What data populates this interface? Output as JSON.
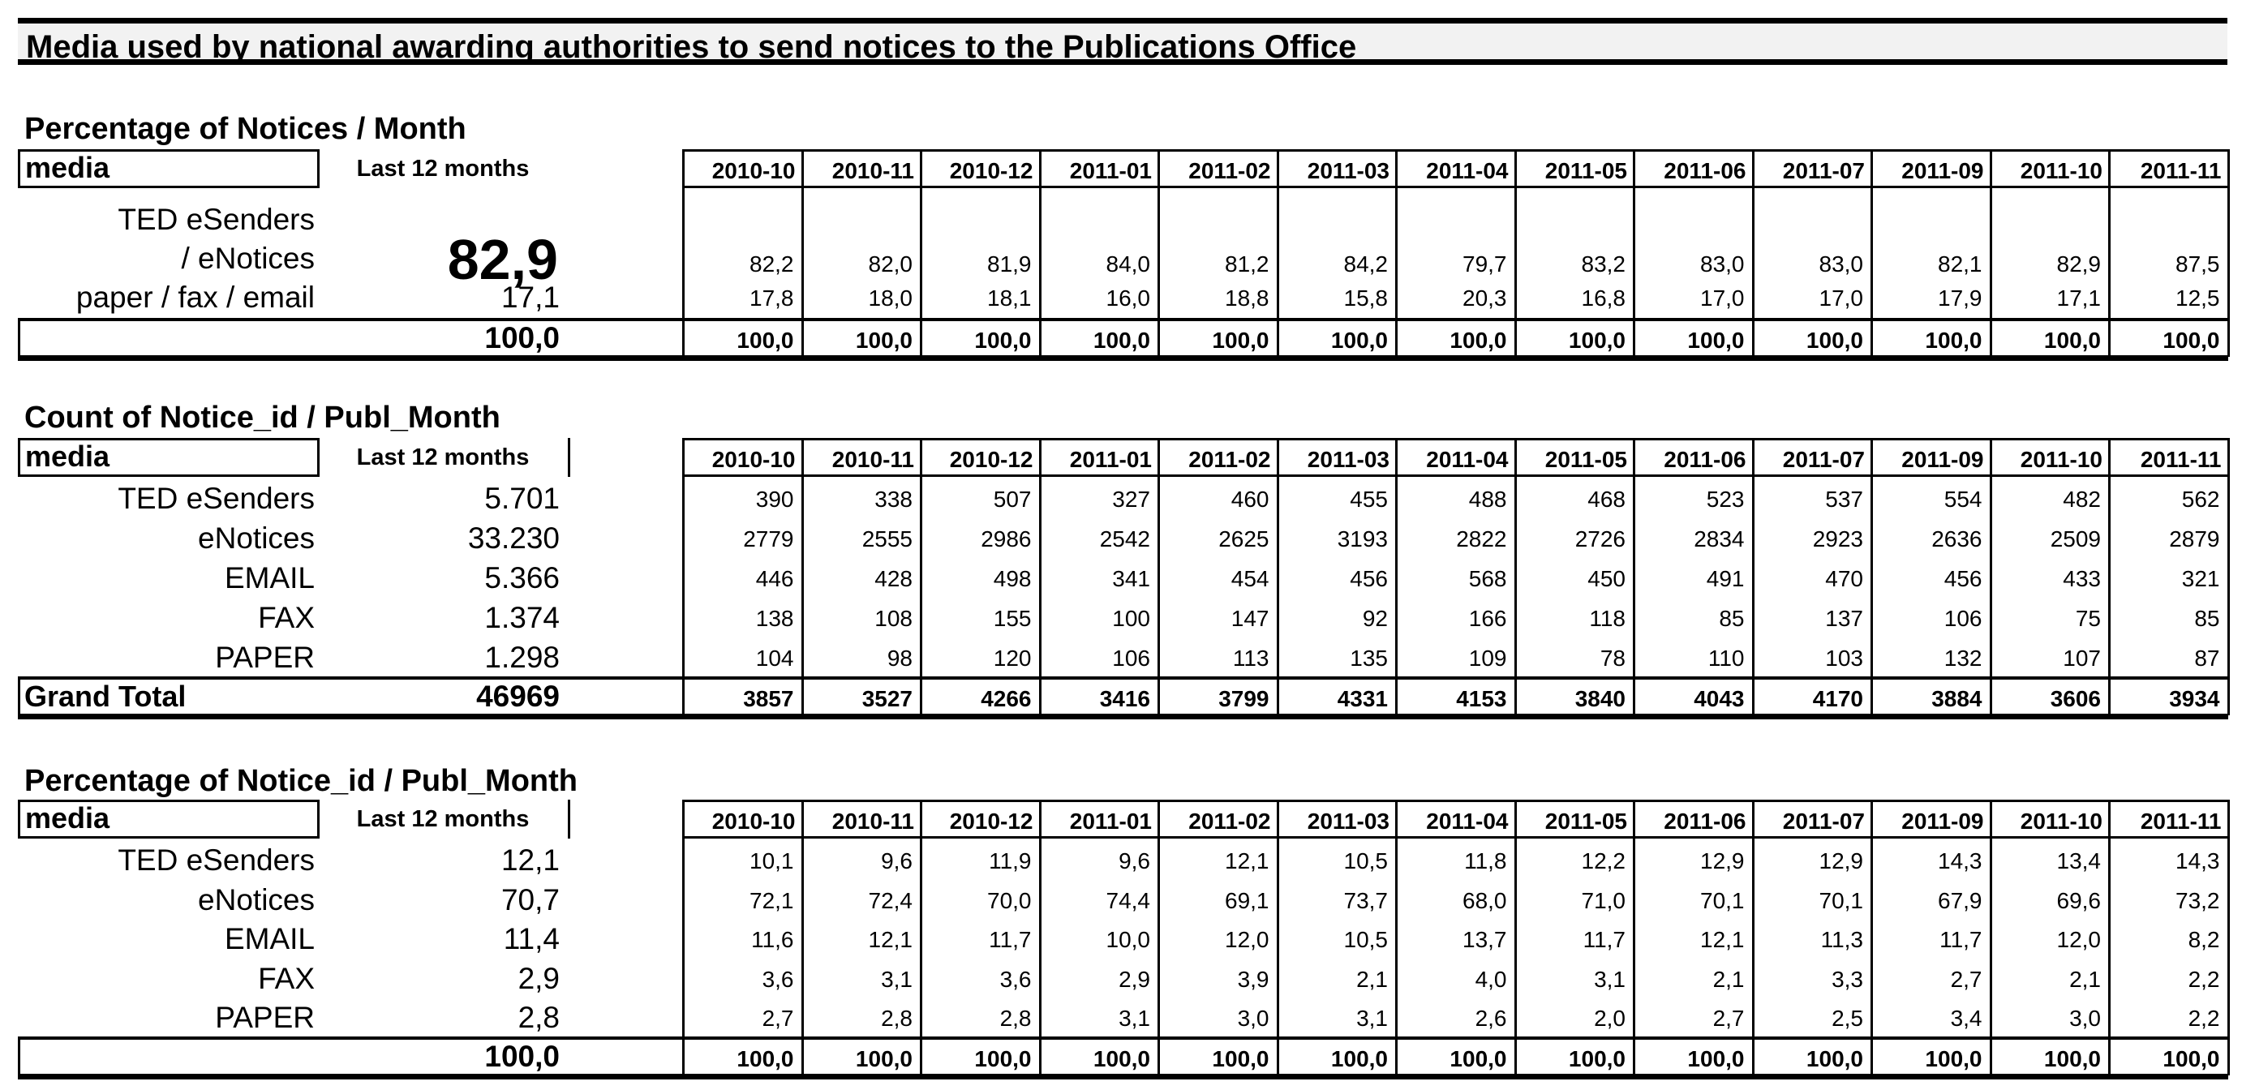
{
  "page_title": "Media used by national awarding authorities to send notices to the Publications Office",
  "months": [
    "2010-10",
    "2010-11",
    "2010-12",
    "2011-01",
    "2011-02",
    "2011-03",
    "2011-04",
    "2011-05",
    "2011-06",
    "2011-07",
    "2011-09",
    "2011-10",
    "2011-11"
  ],
  "header": {
    "media": "media",
    "last12": "Last 12 months"
  },
  "table1": {
    "title": "Percentage of Notices / Month",
    "rows": [
      {
        "label_line1": "TED eSenders",
        "label_line2": "/ eNotices",
        "total": "82,9",
        "values": [
          "82,2",
          "82,0",
          "81,9",
          "84,0",
          "81,2",
          "84,2",
          "79,7",
          "83,2",
          "83,0",
          "83,0",
          "82,1",
          "82,9",
          "87,5"
        ]
      },
      {
        "label": "paper / fax / email",
        "total": "17,1",
        "values": [
          "17,8",
          "18,0",
          "18,1",
          "16,0",
          "18,8",
          "15,8",
          "20,3",
          "16,8",
          "17,0",
          "17,0",
          "17,9",
          "17,1",
          "12,5"
        ]
      }
    ],
    "total_row": {
      "label": "",
      "total": "100,0",
      "values": [
        "100,0",
        "100,0",
        "100,0",
        "100,0",
        "100,0",
        "100,0",
        "100,0",
        "100,0",
        "100,0",
        "100,0",
        "100,0",
        "100,0",
        "100,0"
      ]
    }
  },
  "table2": {
    "title": "Count of Notice_id / Publ_Month",
    "rows": [
      {
        "label": "TED eSenders",
        "total": "5.701",
        "values": [
          "390",
          "338",
          "507",
          "327",
          "460",
          "455",
          "488",
          "468",
          "523",
          "537",
          "554",
          "482",
          "562"
        ]
      },
      {
        "label": "eNotices",
        "total": "33.230",
        "values": [
          "2779",
          "2555",
          "2986",
          "2542",
          "2625",
          "3193",
          "2822",
          "2726",
          "2834",
          "2923",
          "2636",
          "2509",
          "2879"
        ]
      },
      {
        "label": "EMAIL",
        "total": "5.366",
        "values": [
          "446",
          "428",
          "498",
          "341",
          "454",
          "456",
          "568",
          "450",
          "491",
          "470",
          "456",
          "433",
          "321"
        ]
      },
      {
        "label": "FAX",
        "total": "1.374",
        "values": [
          "138",
          "108",
          "155",
          "100",
          "147",
          "92",
          "166",
          "118",
          "85",
          "137",
          "106",
          "75",
          "85"
        ]
      },
      {
        "label": "PAPER",
        "total": "1.298",
        "values": [
          "104",
          "98",
          "120",
          "106",
          "113",
          "135",
          "109",
          "78",
          "110",
          "103",
          "132",
          "107",
          "87"
        ]
      }
    ],
    "total_row": {
      "label": "Grand Total",
      "total": "46969",
      "values": [
        "3857",
        "3527",
        "4266",
        "3416",
        "3799",
        "4331",
        "4153",
        "3840",
        "4043",
        "4170",
        "3884",
        "3606",
        "3934"
      ]
    }
  },
  "table3": {
    "title": "Percentage of Notice_id / Publ_Month",
    "rows": [
      {
        "label": "TED eSenders",
        "total": "12,1",
        "values": [
          "10,1",
          "9,6",
          "11,9",
          "9,6",
          "12,1",
          "10,5",
          "11,8",
          "12,2",
          "12,9",
          "12,9",
          "14,3",
          "13,4",
          "14,3"
        ]
      },
      {
        "label": "eNotices",
        "total": "70,7",
        "values": [
          "72,1",
          "72,4",
          "70,0",
          "74,4",
          "69,1",
          "73,7",
          "68,0",
          "71,0",
          "70,1",
          "70,1",
          "67,9",
          "69,6",
          "73,2"
        ]
      },
      {
        "label": "EMAIL",
        "total": "11,4",
        "values": [
          "11,6",
          "12,1",
          "11,7",
          "10,0",
          "12,0",
          "10,5",
          "13,7",
          "11,7",
          "12,1",
          "11,3",
          "11,7",
          "12,0",
          "8,2"
        ]
      },
      {
        "label": "FAX",
        "total": "2,9",
        "values": [
          "3,6",
          "3,1",
          "3,6",
          "2,9",
          "3,9",
          "2,1",
          "4,0",
          "3,1",
          "2,1",
          "3,3",
          "2,7",
          "2,1",
          "2,2"
        ]
      },
      {
        "label": "PAPER",
        "total": "2,8",
        "values": [
          "2,7",
          "2,8",
          "2,8",
          "3,1",
          "3,0",
          "3,1",
          "2,6",
          "2,0",
          "2,7",
          "2,5",
          "3,4",
          "3,0",
          "2,2"
        ]
      }
    ],
    "total_row": {
      "label": "",
      "total": "100,0",
      "values": [
        "100,0",
        "100,0",
        "100,0",
        "100,0",
        "100,0",
        "100,0",
        "100,0",
        "100,0",
        "100,0",
        "100,0",
        "100,0",
        "100,0",
        "100,0"
      ]
    }
  }
}
